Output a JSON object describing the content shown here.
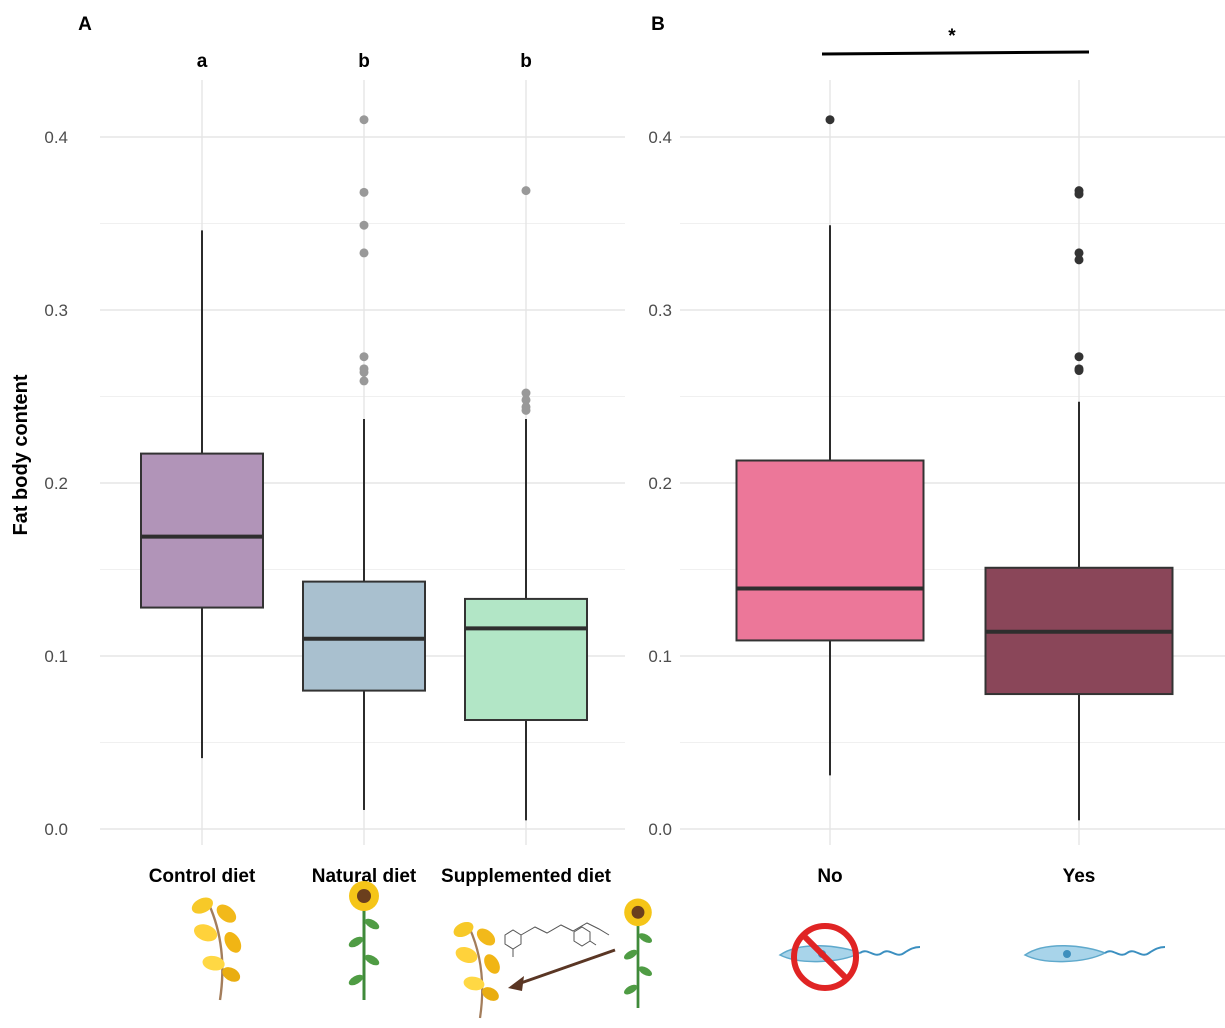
{
  "chart_data": [
    {
      "panel": "A",
      "type": "box",
      "ylabel": "Fat body content",
      "ylim": [
        0,
        0.43
      ],
      "yticks": [
        "0.0",
        "0.1",
        "0.2",
        "0.3",
        "0.4"
      ],
      "categories": [
        "Control diet",
        "Natural diet",
        "Supplemented diet"
      ],
      "letters": [
        "a",
        "b",
        "b"
      ],
      "colors": [
        "#b194b8",
        "#a9c0cf",
        "#b2e6c6"
      ],
      "boxes": [
        {
          "min": 0.041,
          "q1": 0.128,
          "median": 0.169,
          "q3": 0.217,
          "max": 0.346,
          "outliers": []
        },
        {
          "min": 0.011,
          "q1": 0.08,
          "median": 0.11,
          "q3": 0.143,
          "max": 0.237,
          "outliers": [
            0.41,
            0.368,
            0.349,
            0.333,
            0.273,
            0.266,
            0.264,
            0.259
          ]
        },
        {
          "min": 0.005,
          "q1": 0.063,
          "median": 0.116,
          "q3": 0.133,
          "max": 0.237,
          "outliers": [
            0.369,
            0.252,
            0.248,
            0.244,
            0.242
          ]
        }
      ],
      "grid": true
    },
    {
      "panel": "B",
      "type": "box",
      "ylim": [
        0,
        0.43
      ],
      "yticks": [
        "0.0",
        "0.1",
        "0.2",
        "0.3",
        "0.4"
      ],
      "categories": [
        "No",
        "Yes"
      ],
      "significance": "*",
      "colors": [
        "#ec7799",
        "#8a4659"
      ],
      "boxes": [
        {
          "min": 0.031,
          "q1": 0.109,
          "median": 0.139,
          "q3": 0.213,
          "max": 0.349,
          "outliers": [
            0.41
          ]
        },
        {
          "min": 0.005,
          "q1": 0.078,
          "median": 0.114,
          "q3": 0.151,
          "max": 0.247,
          "outliers": [
            0.369,
            0.367,
            0.333,
            0.329,
            0.273,
            0.266,
            0.265
          ]
        }
      ],
      "grid": true
    }
  ],
  "icons": [
    "yellow-flower-branch-icon",
    "sunflower-icon",
    "supplemented-diet-illustration-icon",
    "no-parasite-icon",
    "parasite-icon"
  ]
}
